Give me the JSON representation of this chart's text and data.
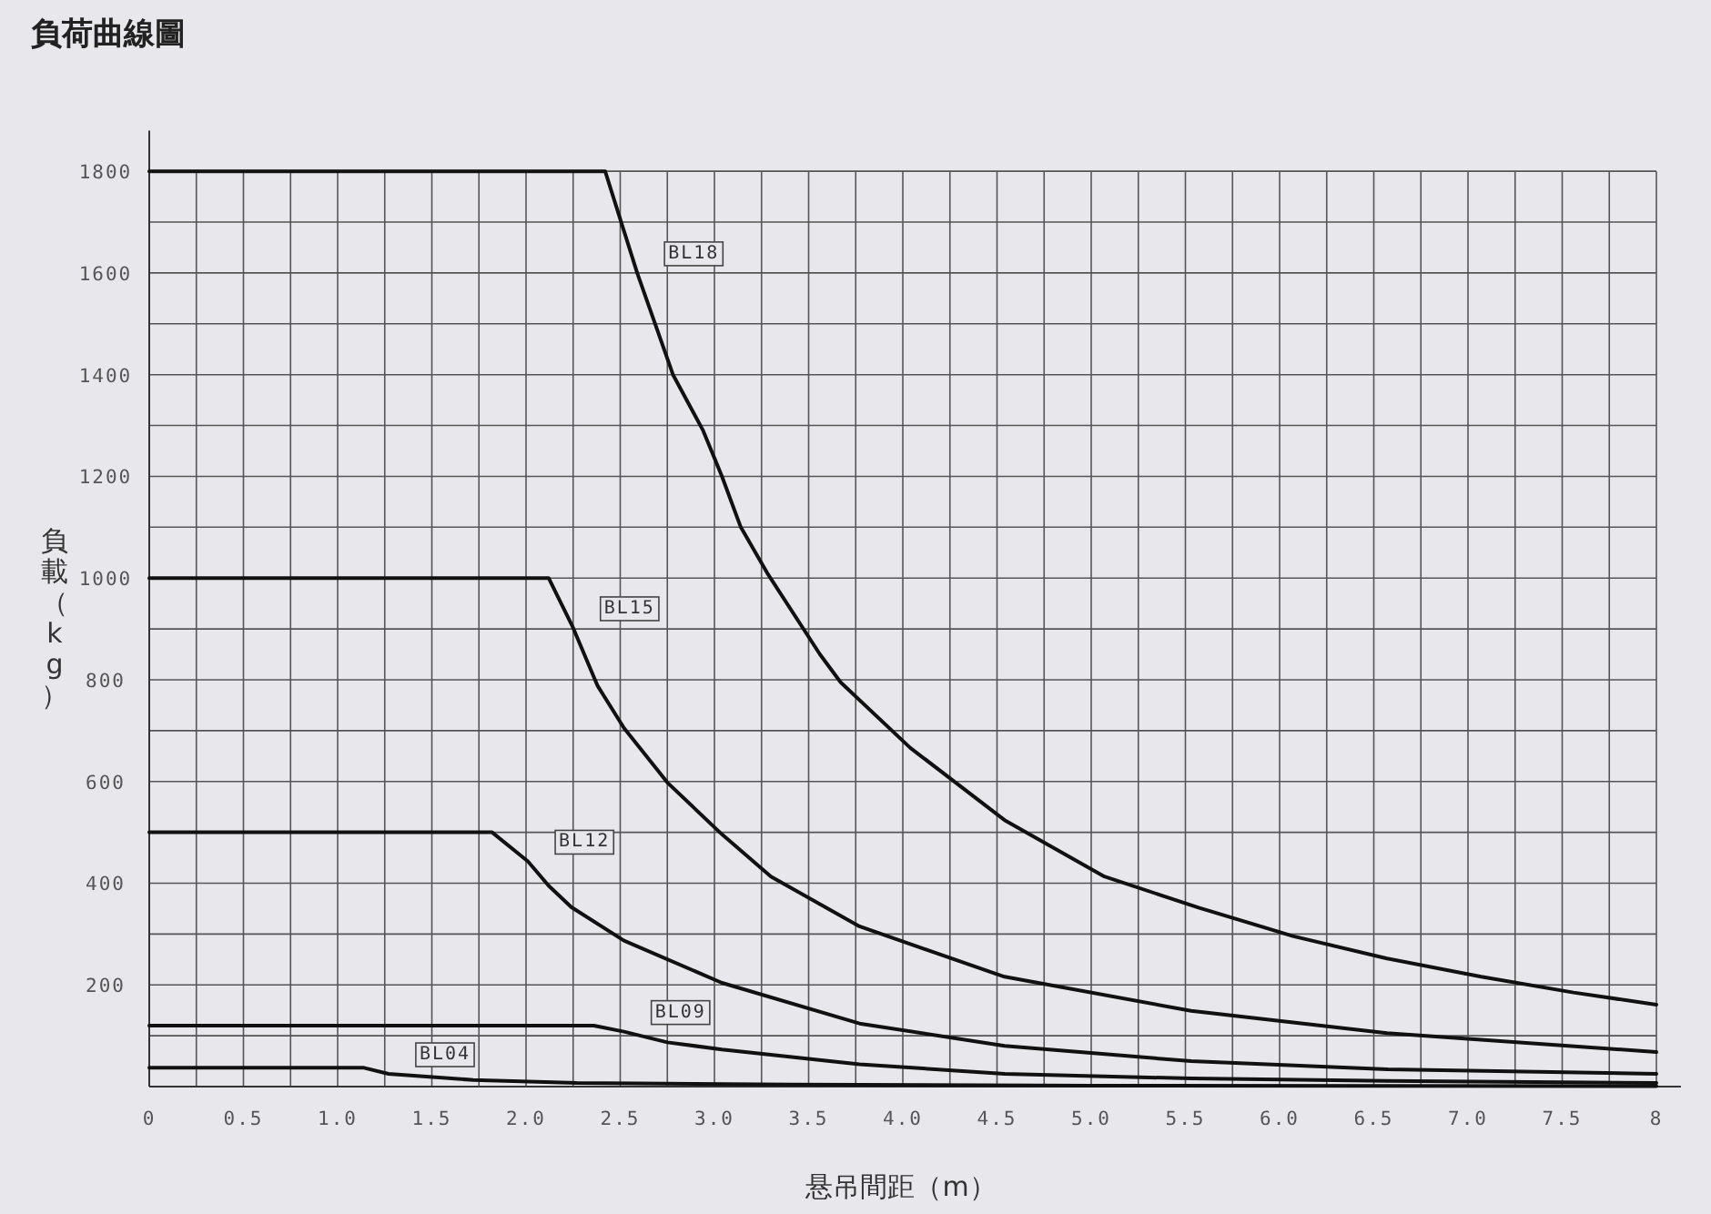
{
  "chart_data": {
    "type": "line",
    "title": "負荷曲線圖",
    "xlabel": "悬吊間距（m）",
    "ylabel": "負載（kg）",
    "xlim": [
      0,
      8.13
    ],
    "ylim": [
      0,
      1880
    ],
    "xticks": [
      {
        "value": 0,
        "label": "0"
      },
      {
        "value": 0.25,
        "label": null
      },
      {
        "value": 0.5,
        "label": "0.5"
      },
      {
        "value": 0.75,
        "label": null
      },
      {
        "value": 1,
        "label": "1.0"
      },
      {
        "value": 1.25,
        "label": null
      },
      {
        "value": 1.5,
        "label": "1.5"
      },
      {
        "value": 1.75,
        "label": null
      },
      {
        "value": 2,
        "label": "2.0"
      },
      {
        "value": 2.25,
        "label": null
      },
      {
        "value": 2.5,
        "label": "2.5"
      },
      {
        "value": 2.75,
        "label": null
      },
      {
        "value": 3,
        "label": "3.0"
      },
      {
        "value": 3.25,
        "label": null
      },
      {
        "value": 3.5,
        "label": "3.5"
      },
      {
        "value": 3.75,
        "label": null
      },
      {
        "value": 4,
        "label": "4.0"
      },
      {
        "value": 4.25,
        "label": null
      },
      {
        "value": 4.5,
        "label": "4.5"
      },
      {
        "value": 4.75,
        "label": null
      },
      {
        "value": 5,
        "label": "5.0"
      },
      {
        "value": 5.25,
        "label": null
      },
      {
        "value": 5.5,
        "label": "5.5"
      },
      {
        "value": 5.75,
        "label": null
      },
      {
        "value": 6,
        "label": "6.0"
      },
      {
        "value": 6.25,
        "label": null
      },
      {
        "value": 6.5,
        "label": "6.5"
      },
      {
        "value": 6.75,
        "label": null
      },
      {
        "value": 7,
        "label": "7.0"
      },
      {
        "value": 7.25,
        "label": null
      },
      {
        "value": 7.5,
        "label": "7.5"
      },
      {
        "value": 7.75,
        "label": null
      },
      {
        "value": 8,
        "label": "8"
      }
    ],
    "yticks": [
      {
        "value": 100,
        "label": null
      },
      200,
      {
        "value": 300,
        "label": null
      },
      400,
      {
        "value": 500,
        "label": null
      },
      600,
      {
        "value": 700,
        "label": null
      },
      800,
      {
        "value": 900,
        "label": null
      },
      1000,
      {
        "value": 1100,
        "label": null
      },
      1200,
      {
        "value": 1300,
        "label": null
      },
      1400,
      {
        "value": 1500,
        "label": null
      },
      1600,
      {
        "value": 1700,
        "label": null
      },
      1800
    ],
    "grid": true,
    "marker": "none",
    "line_style": "solid",
    "series": [
      {
        "name": "BL18",
        "color": "#111111",
        "x": [
          0,
          2.42,
          2.59,
          2.78,
          2.94,
          3.04,
          3.14,
          3.28,
          3.56,
          3.67,
          4.04,
          4.54,
          5.07,
          5.57,
          6.07,
          6.57,
          7.07,
          7.56,
          8
        ],
        "values": [
          1800,
          1800,
          1600,
          1400,
          1290,
          1200,
          1100,
          1010,
          850,
          795,
          666,
          524,
          413,
          352,
          296,
          252,
          216,
          185,
          161
        ]
      },
      {
        "name": "BL15",
        "color": "#111111",
        "x": [
          0,
          2.12,
          2.25,
          2.38,
          2.52,
          2.75,
          3.04,
          3.3,
          3.77,
          4.54,
          5.53,
          6.57,
          8
        ],
        "values": [
          1000,
          1000,
          902,
          788,
          705,
          598,
          496,
          413,
          315,
          216,
          149,
          105,
          68
        ]
      },
      {
        "name": "BL12",
        "color": "#111111",
        "x": [
          0,
          1.82,
          2.01,
          2.12,
          2.24,
          2.52,
          3.04,
          3.77,
          4.54,
          5.53,
          6.57,
          8
        ],
        "values": [
          500,
          500,
          443,
          395,
          353,
          287,
          204,
          124,
          80,
          50,
          34,
          25
        ]
      },
      {
        "name": "BL09",
        "color": "#111111",
        "x": [
          0,
          2.36,
          2.52,
          2.75,
          3.04,
          3.77,
          4.54,
          5.53,
          6.57,
          8
        ],
        "values": [
          120,
          120,
          108,
          87,
          73,
          44,
          25,
          16,
          11,
          7
        ]
      },
      {
        "name": "BL04",
        "color": "#111111",
        "x": [
          0,
          1.14,
          1.27,
          1.72,
          2.27,
          3.4,
          5,
          8
        ],
        "values": [
          37,
          37,
          25,
          13,
          7,
          4,
          2,
          1
        ]
      }
    ]
  }
}
